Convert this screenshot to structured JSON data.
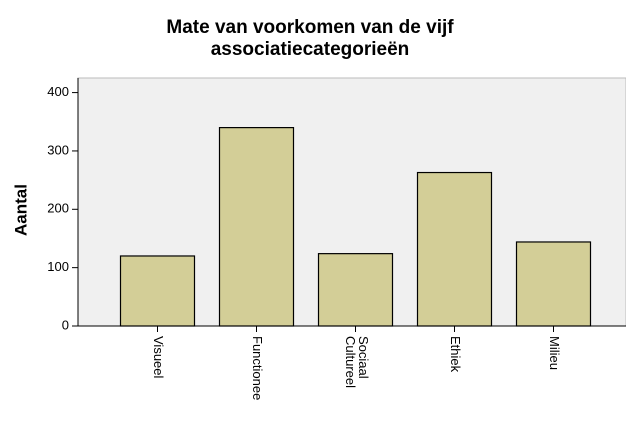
{
  "chart_data": {
    "type": "bar",
    "title": [
      "Mate van voorkomen van de vijf",
      "associatiecategorieën"
    ],
    "y_label": "Aantal",
    "categories": [
      "Visueel",
      "Functionee",
      "Sociaal Cultureel",
      "Ethiek",
      "Milieu"
    ],
    "values": [
      120,
      340,
      124,
      263,
      144
    ],
    "color": "#d3ce97",
    "ylim": [
      0,
      425
    ],
    "yticks": [
      0,
      100,
      200,
      300,
      400
    ],
    "grid": false
  }
}
